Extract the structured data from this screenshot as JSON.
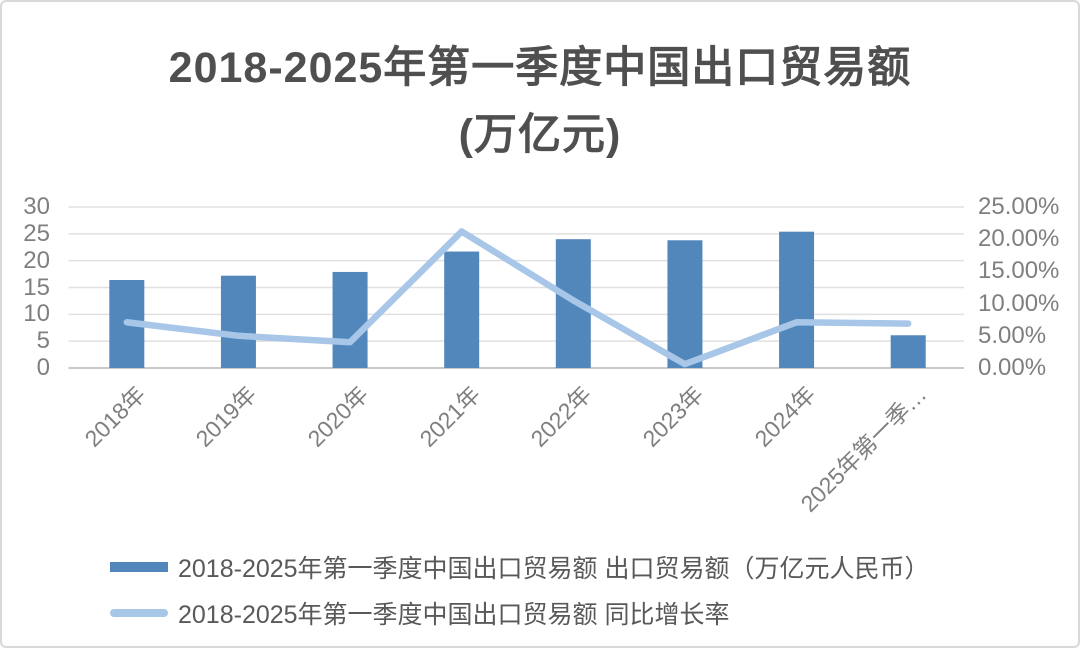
{
  "title": {
    "line1": "2018-2025年第一季度中国出口贸易额",
    "line2": "(万亿元)"
  },
  "legend": {
    "bar_label": "2018-2025年第一季度中国出口贸易额 出口贸易额（万亿元人民币）",
    "line_label": "2018-2025年第一季度中国出口贸易额 同比增长率"
  },
  "colors": {
    "bar": "#5187BB",
    "line": "#A7C6E8",
    "grid": "#E0E0E0",
    "axis_line": "#C9C9C9",
    "tick_text": "#7F7F7F",
    "title_text": "#4F4F4F",
    "legend_text": "#595959",
    "border": "#D9D9D9",
    "background": "#FFFFFF"
  },
  "chart_data": {
    "type": "bar",
    "subtype": "bar+line combo, dual axis",
    "title": "2018-2025年第一季度中国出口贸易额 (万亿元)",
    "categories": [
      "2018年",
      "2019年",
      "2020年",
      "2021年",
      "2022年",
      "2023年",
      "2024年",
      "2025年第一季…"
    ],
    "series": [
      {
        "name": "2018-2025年第一季度中国出口贸易额 出口贸易额（万亿元人民币）",
        "type": "bar",
        "axis": "left",
        "values": [
          16.4,
          17.2,
          17.9,
          21.7,
          24.0,
          23.8,
          25.4,
          6.1
        ]
      },
      {
        "name": "2018-2025年第一季度中国出口贸易额 同比增长率",
        "type": "line",
        "axis": "right",
        "unit": "%",
        "values": [
          7.1,
          5.0,
          4.0,
          21.2,
          10.5,
          0.6,
          7.1,
          6.9
        ]
      }
    ],
    "left_axis": {
      "min": 0,
      "max": 30,
      "ticks": [
        "30",
        "25",
        "20",
        "15",
        "10",
        "5",
        "0"
      ]
    },
    "right_axis": {
      "min": 0,
      "max": 25,
      "ticks": [
        "25.00%",
        "20.00%",
        "15.00%",
        "10.00%",
        "5.00%",
        "0.00%"
      ]
    },
    "grid": "horizontal gridlines on",
    "legend_position": "bottom-left"
  }
}
